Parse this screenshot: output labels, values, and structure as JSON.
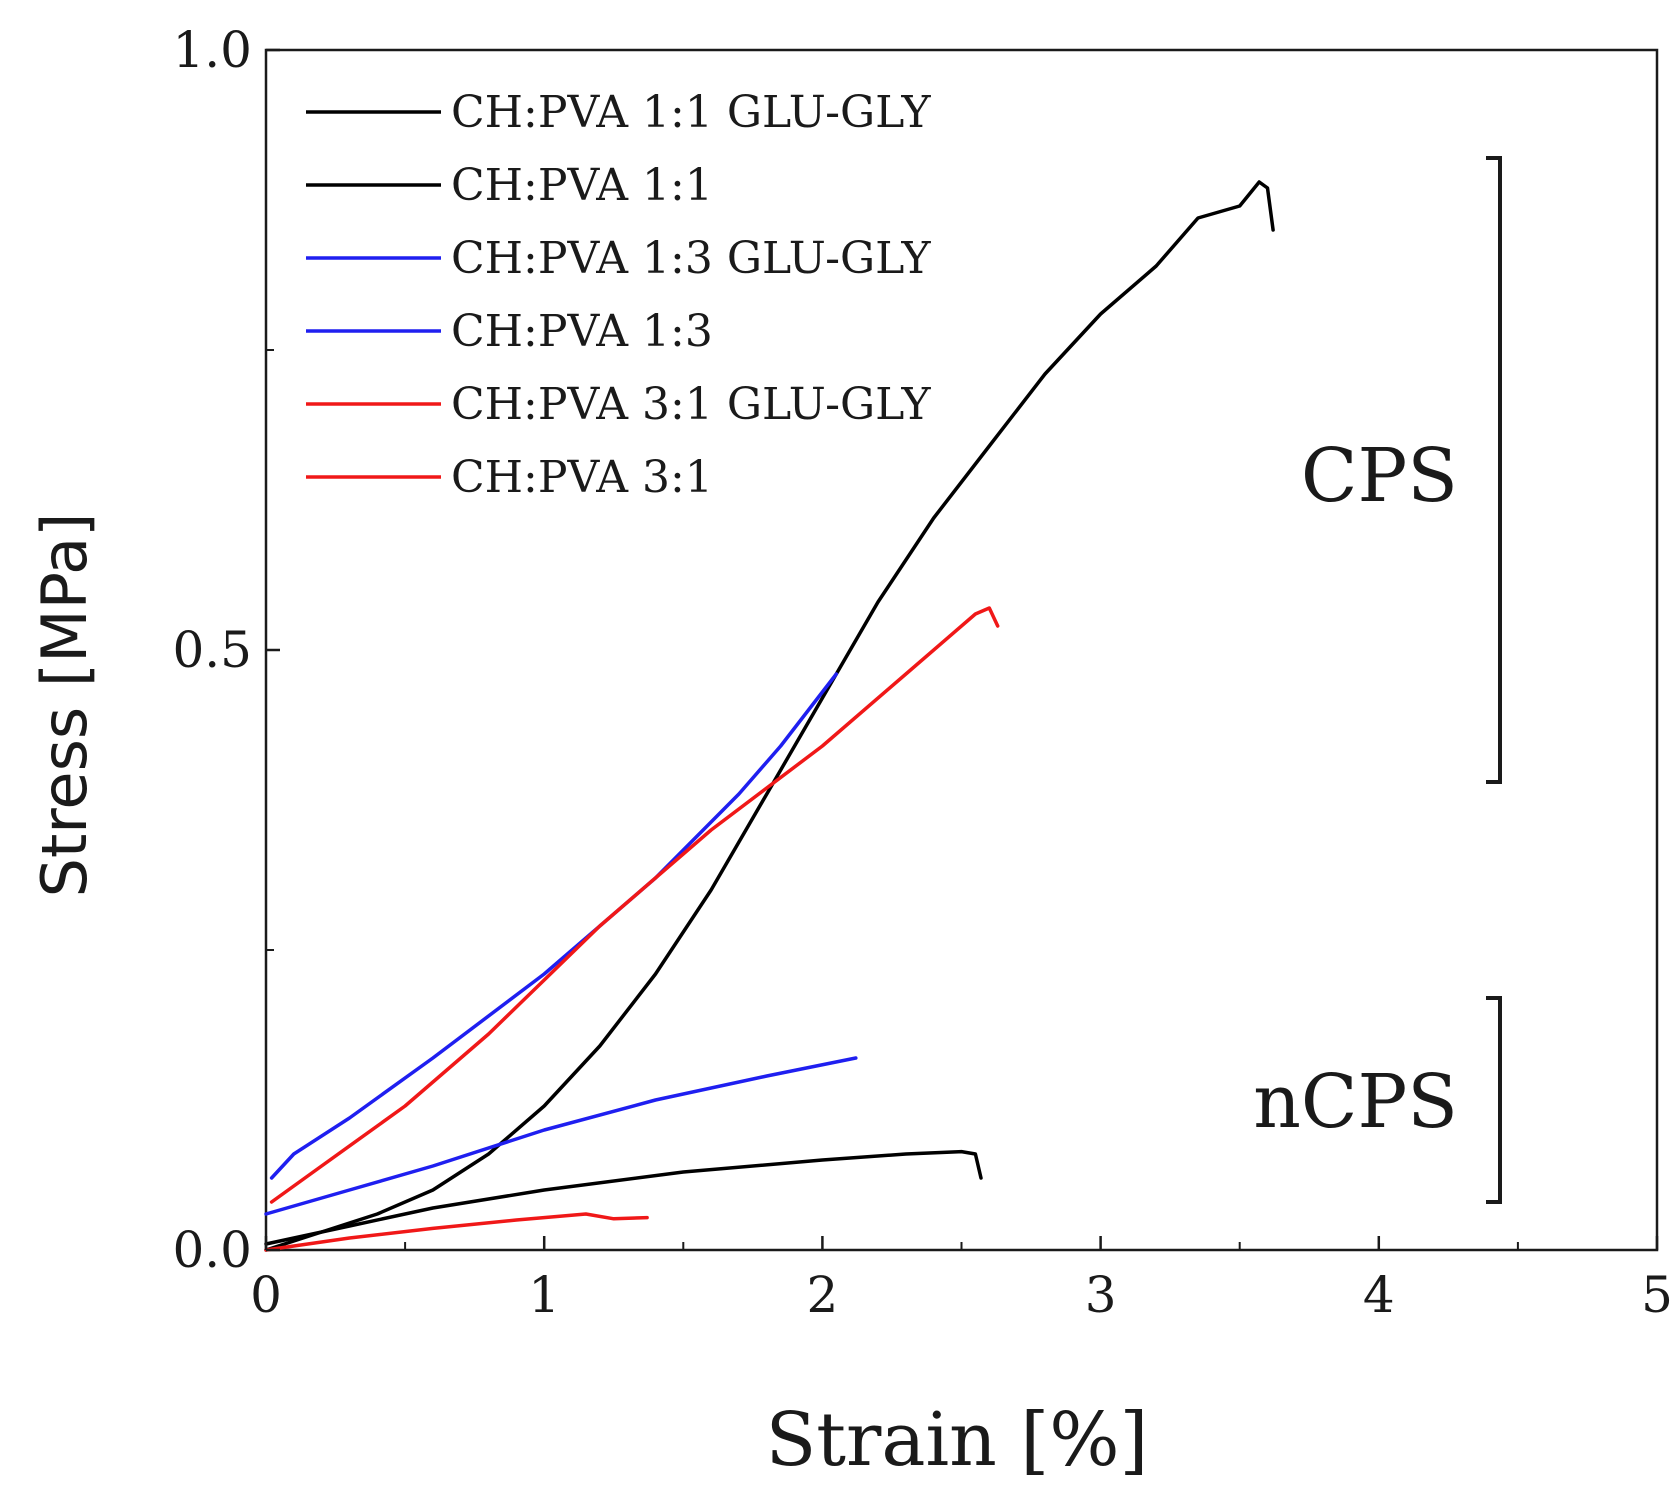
{
  "chart_data": {
    "type": "line",
    "title": "",
    "xlabel": "Strain [%]",
    "ylabel": "Stress [MPa]",
    "xlim": [
      0,
      5
    ],
    "ylim": [
      0,
      1.0
    ],
    "xticks": [
      0,
      1,
      2,
      3,
      4,
      5
    ],
    "xtick_labels": [
      "0",
      "1",
      "2",
      "3",
      "4",
      "5"
    ],
    "yticks": [
      0.0,
      0.5,
      1.0
    ],
    "ytick_labels": [
      "0.0",
      "0.5",
      "1.0"
    ],
    "legend_position": "top-left",
    "colors": {
      "black": "#000000",
      "blue": "#1f1ff0",
      "red": "#f01818"
    },
    "series": [
      {
        "name": "CH:PVA 1:1 GLU-GLY",
        "color": "#000000",
        "points": [
          [
            0,
            0.0
          ],
          [
            0.2,
            0.015
          ],
          [
            0.4,
            0.03
          ],
          [
            0.6,
            0.05
          ],
          [
            0.8,
            0.08
          ],
          [
            1.0,
            0.12
          ],
          [
            1.2,
            0.17
          ],
          [
            1.4,
            0.23
          ],
          [
            1.6,
            0.3
          ],
          [
            1.8,
            0.38
          ],
          [
            2.0,
            0.46
          ],
          [
            2.2,
            0.54
          ],
          [
            2.4,
            0.61
          ],
          [
            2.6,
            0.67
          ],
          [
            2.8,
            0.73
          ],
          [
            3.0,
            0.78
          ],
          [
            3.2,
            0.82
          ],
          [
            3.35,
            0.86
          ],
          [
            3.5,
            0.87
          ],
          [
            3.57,
            0.89
          ],
          [
            3.6,
            0.885
          ],
          [
            3.62,
            0.85
          ]
        ]
      },
      {
        "name": "CH:PVA 1:1",
        "color": "#000000",
        "points": [
          [
            0,
            0.005
          ],
          [
            0.3,
            0.02
          ],
          [
            0.6,
            0.035
          ],
          [
            1.0,
            0.05
          ],
          [
            1.5,
            0.065
          ],
          [
            2.0,
            0.075
          ],
          [
            2.3,
            0.08
          ],
          [
            2.5,
            0.082
          ],
          [
            2.55,
            0.08
          ],
          [
            2.57,
            0.06
          ]
        ]
      },
      {
        "name": "CH:PVA 1:3 GLU-GLY",
        "color": "#1f1ff0",
        "points": [
          [
            0.02,
            0.06
          ],
          [
            0.1,
            0.08
          ],
          [
            0.3,
            0.11
          ],
          [
            0.6,
            0.16
          ],
          [
            1.0,
            0.23
          ],
          [
            1.4,
            0.31
          ],
          [
            1.7,
            0.38
          ],
          [
            1.85,
            0.42
          ],
          [
            1.95,
            0.45
          ],
          [
            2.05,
            0.48
          ]
        ]
      },
      {
        "name": "CH:PVA 1:3",
        "color": "#1f1ff0",
        "points": [
          [
            0.0,
            0.03
          ],
          [
            0.3,
            0.05
          ],
          [
            0.6,
            0.07
          ],
          [
            1.0,
            0.1
          ],
          [
            1.4,
            0.125
          ],
          [
            1.8,
            0.145
          ],
          [
            2.12,
            0.16
          ]
        ]
      },
      {
        "name": "CH:PVA 3:1 GLU-GLY",
        "color": "#f01818",
        "points": [
          [
            0.02,
            0.04
          ],
          [
            0.2,
            0.07
          ],
          [
            0.5,
            0.12
          ],
          [
            0.8,
            0.18
          ],
          [
            1.2,
            0.27
          ],
          [
            1.6,
            0.35
          ],
          [
            2.0,
            0.42
          ],
          [
            2.3,
            0.48
          ],
          [
            2.55,
            0.53
          ],
          [
            2.6,
            0.535
          ],
          [
            2.63,
            0.52
          ]
        ]
      },
      {
        "name": "CH:PVA 3:1",
        "color": "#f01818",
        "points": [
          [
            0.0,
            0.0
          ],
          [
            0.3,
            0.01
          ],
          [
            0.6,
            0.018
          ],
          [
            0.9,
            0.025
          ],
          [
            1.15,
            0.03
          ],
          [
            1.25,
            0.026
          ],
          [
            1.37,
            0.027
          ]
        ]
      }
    ],
    "annotations": [
      {
        "text": "CPS",
        "range": [
          0.39,
          0.91
        ]
      },
      {
        "text": "nCPS",
        "range": [
          0.04,
          0.21
        ]
      }
    ]
  }
}
